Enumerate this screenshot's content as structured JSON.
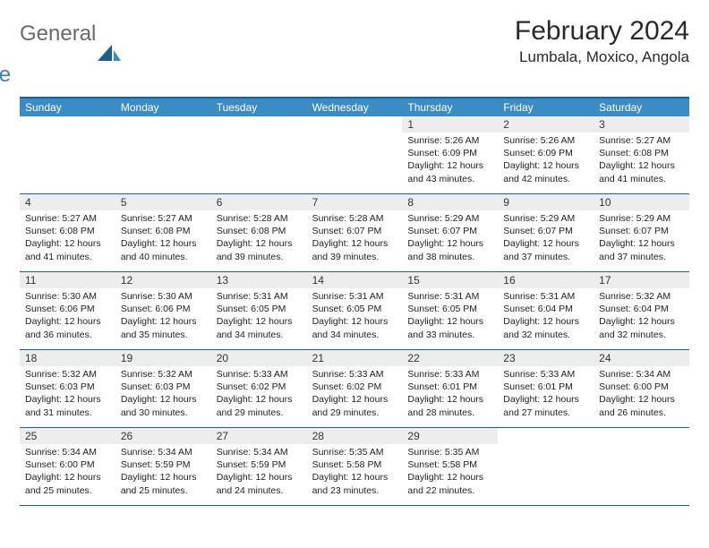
{
  "brand": {
    "general": "General",
    "blue": "Blue"
  },
  "title": "February 2024",
  "location": "Lumbala, Moxico, Angola",
  "colors": {
    "header_bg": "#3b8bc4",
    "header_border": "#1f5f8b",
    "daynum_bg": "#ededed",
    "text": "#222222",
    "logo_gray": "#6b6b6b",
    "logo_blue": "#3b82c4"
  },
  "day_names": [
    "Sunday",
    "Monday",
    "Tuesday",
    "Wednesday",
    "Thursday",
    "Friday",
    "Saturday"
  ],
  "weeks": [
    [
      {
        "n": "",
        "sunrise": "",
        "sunset": "",
        "daylight": ""
      },
      {
        "n": "",
        "sunrise": "",
        "sunset": "",
        "daylight": ""
      },
      {
        "n": "",
        "sunrise": "",
        "sunset": "",
        "daylight": ""
      },
      {
        "n": "",
        "sunrise": "",
        "sunset": "",
        "daylight": ""
      },
      {
        "n": "1",
        "sunrise": "Sunrise: 5:26 AM",
        "sunset": "Sunset: 6:09 PM",
        "daylight": "Daylight: 12 hours and 43 minutes."
      },
      {
        "n": "2",
        "sunrise": "Sunrise: 5:26 AM",
        "sunset": "Sunset: 6:09 PM",
        "daylight": "Daylight: 12 hours and 42 minutes."
      },
      {
        "n": "3",
        "sunrise": "Sunrise: 5:27 AM",
        "sunset": "Sunset: 6:08 PM",
        "daylight": "Daylight: 12 hours and 41 minutes."
      }
    ],
    [
      {
        "n": "4",
        "sunrise": "Sunrise: 5:27 AM",
        "sunset": "Sunset: 6:08 PM",
        "daylight": "Daylight: 12 hours and 41 minutes."
      },
      {
        "n": "5",
        "sunrise": "Sunrise: 5:27 AM",
        "sunset": "Sunset: 6:08 PM",
        "daylight": "Daylight: 12 hours and 40 minutes."
      },
      {
        "n": "6",
        "sunrise": "Sunrise: 5:28 AM",
        "sunset": "Sunset: 6:08 PM",
        "daylight": "Daylight: 12 hours and 39 minutes."
      },
      {
        "n": "7",
        "sunrise": "Sunrise: 5:28 AM",
        "sunset": "Sunset: 6:07 PM",
        "daylight": "Daylight: 12 hours and 39 minutes."
      },
      {
        "n": "8",
        "sunrise": "Sunrise: 5:29 AM",
        "sunset": "Sunset: 6:07 PM",
        "daylight": "Daylight: 12 hours and 38 minutes."
      },
      {
        "n": "9",
        "sunrise": "Sunrise: 5:29 AM",
        "sunset": "Sunset: 6:07 PM",
        "daylight": "Daylight: 12 hours and 37 minutes."
      },
      {
        "n": "10",
        "sunrise": "Sunrise: 5:29 AM",
        "sunset": "Sunset: 6:07 PM",
        "daylight": "Daylight: 12 hours and 37 minutes."
      }
    ],
    [
      {
        "n": "11",
        "sunrise": "Sunrise: 5:30 AM",
        "sunset": "Sunset: 6:06 PM",
        "daylight": "Daylight: 12 hours and 36 minutes."
      },
      {
        "n": "12",
        "sunrise": "Sunrise: 5:30 AM",
        "sunset": "Sunset: 6:06 PM",
        "daylight": "Daylight: 12 hours and 35 minutes."
      },
      {
        "n": "13",
        "sunrise": "Sunrise: 5:31 AM",
        "sunset": "Sunset: 6:05 PM",
        "daylight": "Daylight: 12 hours and 34 minutes."
      },
      {
        "n": "14",
        "sunrise": "Sunrise: 5:31 AM",
        "sunset": "Sunset: 6:05 PM",
        "daylight": "Daylight: 12 hours and 34 minutes."
      },
      {
        "n": "15",
        "sunrise": "Sunrise: 5:31 AM",
        "sunset": "Sunset: 6:05 PM",
        "daylight": "Daylight: 12 hours and 33 minutes."
      },
      {
        "n": "16",
        "sunrise": "Sunrise: 5:31 AM",
        "sunset": "Sunset: 6:04 PM",
        "daylight": "Daylight: 12 hours and 32 minutes."
      },
      {
        "n": "17",
        "sunrise": "Sunrise: 5:32 AM",
        "sunset": "Sunset: 6:04 PM",
        "daylight": "Daylight: 12 hours and 32 minutes."
      }
    ],
    [
      {
        "n": "18",
        "sunrise": "Sunrise: 5:32 AM",
        "sunset": "Sunset: 6:03 PM",
        "daylight": "Daylight: 12 hours and 31 minutes."
      },
      {
        "n": "19",
        "sunrise": "Sunrise: 5:32 AM",
        "sunset": "Sunset: 6:03 PM",
        "daylight": "Daylight: 12 hours and 30 minutes."
      },
      {
        "n": "20",
        "sunrise": "Sunrise: 5:33 AM",
        "sunset": "Sunset: 6:02 PM",
        "daylight": "Daylight: 12 hours and 29 minutes."
      },
      {
        "n": "21",
        "sunrise": "Sunrise: 5:33 AM",
        "sunset": "Sunset: 6:02 PM",
        "daylight": "Daylight: 12 hours and 29 minutes."
      },
      {
        "n": "22",
        "sunrise": "Sunrise: 5:33 AM",
        "sunset": "Sunset: 6:01 PM",
        "daylight": "Daylight: 12 hours and 28 minutes."
      },
      {
        "n": "23",
        "sunrise": "Sunrise: 5:33 AM",
        "sunset": "Sunset: 6:01 PM",
        "daylight": "Daylight: 12 hours and 27 minutes."
      },
      {
        "n": "24",
        "sunrise": "Sunrise: 5:34 AM",
        "sunset": "Sunset: 6:00 PM",
        "daylight": "Daylight: 12 hours and 26 minutes."
      }
    ],
    [
      {
        "n": "25",
        "sunrise": "Sunrise: 5:34 AM",
        "sunset": "Sunset: 6:00 PM",
        "daylight": "Daylight: 12 hours and 25 minutes."
      },
      {
        "n": "26",
        "sunrise": "Sunrise: 5:34 AM",
        "sunset": "Sunset: 5:59 PM",
        "daylight": "Daylight: 12 hours and 25 minutes."
      },
      {
        "n": "27",
        "sunrise": "Sunrise: 5:34 AM",
        "sunset": "Sunset: 5:59 PM",
        "daylight": "Daylight: 12 hours and 24 minutes."
      },
      {
        "n": "28",
        "sunrise": "Sunrise: 5:35 AM",
        "sunset": "Sunset: 5:58 PM",
        "daylight": "Daylight: 12 hours and 23 minutes."
      },
      {
        "n": "29",
        "sunrise": "Sunrise: 5:35 AM",
        "sunset": "Sunset: 5:58 PM",
        "daylight": "Daylight: 12 hours and 22 minutes."
      },
      {
        "n": "",
        "sunrise": "",
        "sunset": "",
        "daylight": ""
      },
      {
        "n": "",
        "sunrise": "",
        "sunset": "",
        "daylight": ""
      }
    ]
  ]
}
